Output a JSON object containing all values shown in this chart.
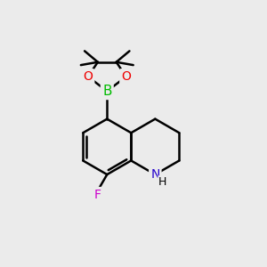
{
  "bg_color": "#ebebeb",
  "bond_color": "#000000",
  "bond_width": 1.8,
  "atom_colors": {
    "B": "#00bb00",
    "O": "#ee0000",
    "N": "#2200cc",
    "F": "#cc00cc",
    "C": "#000000",
    "H": "#000000"
  },
  "font_size_atom": 10,
  "font_size_small": 8
}
